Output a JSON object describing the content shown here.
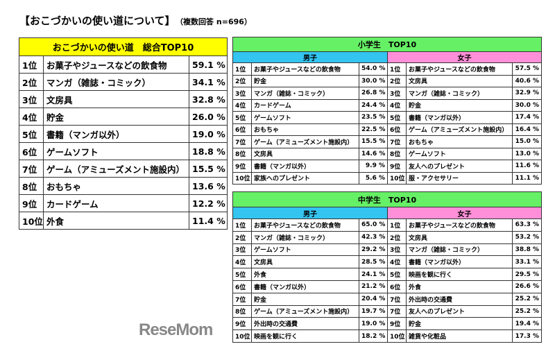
{
  "title": {
    "main": "【おこづかいの使い道について】",
    "sub": "（複数回答 n=696）"
  },
  "total": {
    "header": "おこづかいの使い道　総合TOP10",
    "rows": [
      [
        "1位",
        "お菓子やジュースなどの飲食物",
        "59.1 %"
      ],
      [
        "2位",
        "マンガ（雑誌・コミック）",
        "34.1 %"
      ],
      [
        "3位",
        "文房具",
        "32.8 %"
      ],
      [
        "4位",
        "貯金",
        "26.0 %"
      ],
      [
        "5位",
        "書籍（マンガ以外）",
        "19.0 %"
      ],
      [
        "6位",
        "ゲームソフト",
        "18.8 %"
      ],
      [
        "7位",
        "ゲーム（アミューズメント施設内）",
        "15.5 %"
      ],
      [
        "8位",
        "おもちゃ",
        "13.6 %"
      ],
      [
        "9位",
        "カードゲーム",
        "12.2 %"
      ],
      [
        "10位",
        "外食",
        "11.4 %"
      ]
    ]
  },
  "elementary": {
    "header": "小学生　TOP10",
    "boys_label": "男子",
    "girls_label": "女子",
    "boys": [
      [
        "1位",
        "お菓子やジュースなどの飲食物",
        "54.0 %"
      ],
      [
        "2位",
        "貯金",
        "30.0 %"
      ],
      [
        "3位",
        "マンガ（雑誌・コミック）",
        "26.8 %"
      ],
      [
        "4位",
        "カードゲーム",
        "24.4 %"
      ],
      [
        "5位",
        "ゲームソフト",
        "23.5 %"
      ],
      [
        "6位",
        "おもちゃ",
        "22.5 %"
      ],
      [
        "7位",
        "ゲーム（アミューズメント施設内）",
        "15.5 %"
      ],
      [
        "8位",
        "文房具",
        "14.6 %"
      ],
      [
        "9位",
        "書籍（マンガ以外）",
        "9.9 %"
      ],
      [
        "10位",
        "家族へのプレゼント",
        "5.6 %"
      ]
    ],
    "girls": [
      [
        "1位",
        "お菓子やジュースなどの飲食物",
        "57.5 %"
      ],
      [
        "2位",
        "文房具",
        "40.6 %"
      ],
      [
        "3位",
        "マンガ（雑誌・コミック）",
        "32.9 %"
      ],
      [
        "4位",
        "貯金",
        "30.0 %"
      ],
      [
        "5位",
        "書籍（マンガ以外）",
        "17.4 %"
      ],
      [
        "6位",
        "ゲーム（アミューズメント施設内）",
        "16.4 %"
      ],
      [
        "7位",
        "おもちゃ",
        "15.0 %"
      ],
      [
        "8位",
        "ゲームソフト",
        "13.0 %"
      ],
      [
        "9位",
        "友人へのプレゼント",
        "11.6 %"
      ],
      [
        "10位",
        "服・アクセサリー",
        "11.1 %"
      ]
    ]
  },
  "middle": {
    "header": "中学生　TOP10",
    "boys_label": "男子",
    "girls_label": "女子",
    "boys": [
      [
        "1位",
        "お菓子やジュースなどの飲食物",
        "65.0 %"
      ],
      [
        "2位",
        "マンガ（雑誌・コミック）",
        "42.3 %"
      ],
      [
        "3位",
        "ゲームソフト",
        "29.2 %"
      ],
      [
        "4位",
        "文房具",
        "28.5 %"
      ],
      [
        "5位",
        "外食",
        "24.1 %"
      ],
      [
        "6位",
        "書籍（マンガ以外）",
        "21.2 %"
      ],
      [
        "7位",
        "貯金",
        "20.4 %"
      ],
      [
        "8位",
        "ゲーム（アミューズメント施設内）",
        "19.7 %"
      ],
      [
        "9位",
        "外出時の交通費",
        "19.0 %"
      ],
      [
        "10位",
        "映画を観に行く",
        "18.2 %"
      ]
    ],
    "girls": [
      [
        "1位",
        "お菓子やジュースなどの飲食物",
        "63.3 %"
      ],
      [
        "2位",
        "文房具",
        "53.2 %"
      ],
      [
        "3位",
        "マンガ（雑誌・コミック）",
        "38.8 %"
      ],
      [
        "4位",
        "書籍（マンガ以外）",
        "33.1 %"
      ],
      [
        "5位",
        "映画を観に行く",
        "29.5 %"
      ],
      [
        "6位",
        "外食",
        "26.6 %"
      ],
      [
        "7位",
        "外出時の交通費",
        "25.2 %"
      ],
      [
        "7位",
        "友人へのプレゼント",
        "25.2 %"
      ],
      [
        "9位",
        "貯金",
        "19.4 %"
      ],
      [
        "10位",
        "雑貨や化粧品",
        "17.3 %"
      ]
    ]
  },
  "logo": "ReseMom",
  "colors": {
    "total_header": "#ffff00",
    "section_header": "#66f066",
    "boys": "#33c4f0",
    "girls": "#ff8fd8"
  }
}
